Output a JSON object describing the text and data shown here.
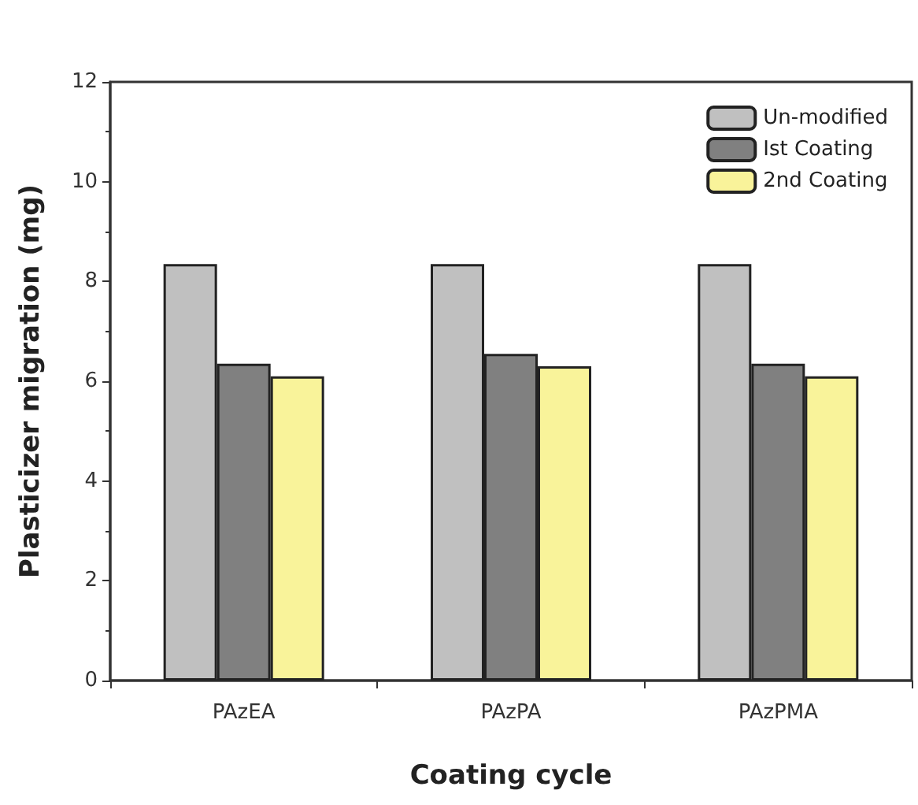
{
  "chart_data": {
    "type": "bar",
    "xlabel": "Coating cycle",
    "ylabel": "Plasticizer migration (mg)",
    "categories": [
      "PAzEA",
      "PAzPA",
      "PAzPMA"
    ],
    "series": [
      {
        "name": "Un-modified",
        "color": "#c0c0c0",
        "values": [
          8.35,
          8.35,
          8.35
        ]
      },
      {
        "name": "Ist Coating",
        "color": "#808080",
        "values": [
          6.35,
          6.55,
          6.35
        ]
      },
      {
        "name": "2nd Coating",
        "color": "#f9f39a",
        "values": [
          6.1,
          6.3,
          6.1
        ]
      }
    ],
    "ylim": [
      0,
      12
    ],
    "yticks": [
      0,
      2,
      4,
      6,
      8,
      10,
      12
    ],
    "grid": false,
    "legend": "top right"
  }
}
